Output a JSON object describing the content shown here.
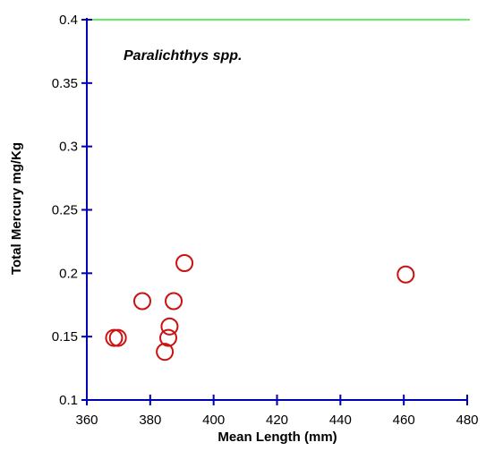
{
  "chart_data": {
    "type": "scatter",
    "title": "",
    "xlabel": "Mean Length (mm)",
    "ylabel": "Total Mercury mg/Kg",
    "annotation": "Paralichthys spp.",
    "xlim": [
      360,
      480
    ],
    "ylim": [
      0.1,
      0.4
    ],
    "x_ticks": [
      360,
      380,
      400,
      420,
      440,
      460,
      480
    ],
    "x_tick_labels": [
      "360",
      "380",
      "400",
      "420",
      "440",
      "460",
      "480"
    ],
    "y_ticks": [
      0.1,
      0.15,
      0.2,
      0.25,
      0.3,
      0.35,
      0.4
    ],
    "y_tick_labels": [
      "0.1",
      "0.15",
      "0.2",
      "0.25",
      "0.3",
      "0.35",
      "0.4"
    ],
    "reference_line": {
      "y": 0.4,
      "color": "#33e633"
    },
    "axis_color": "#0000b3",
    "marker_color": "#cc1111",
    "marker": "open-circle",
    "grid": false,
    "series": [
      {
        "points": [
          {
            "x": 368.6,
            "y": 0.149
          },
          {
            "x": 369.8,
            "y": 0.149
          },
          {
            "x": 377.5,
            "y": 0.178
          },
          {
            "x": 384.6,
            "y": 0.138
          },
          {
            "x": 385.7,
            "y": 0.149
          },
          {
            "x": 386.1,
            "y": 0.158
          },
          {
            "x": 387.4,
            "y": 0.178
          },
          {
            "x": 390.8,
            "y": 0.208
          },
          {
            "x": 460.6,
            "y": 0.199
          }
        ]
      }
    ]
  }
}
